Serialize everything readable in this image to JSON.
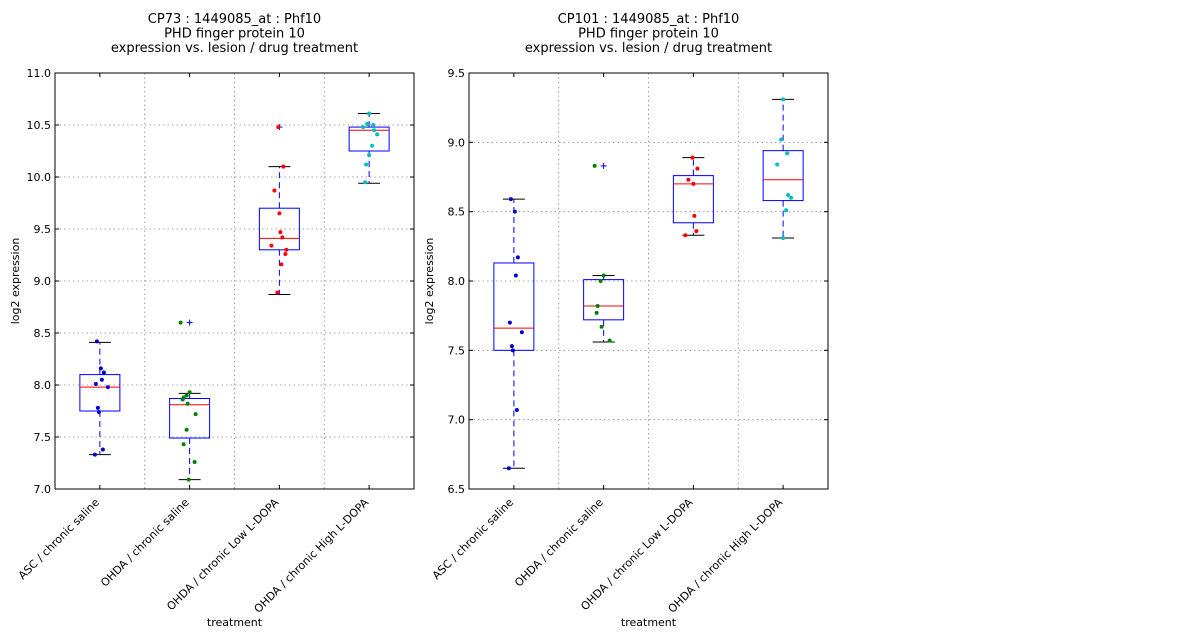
{
  "chart_data": [
    {
      "type": "box",
      "title_lines": [
        "CP73 : 1449085_at : Phf10",
        "PHD finger protein 10",
        "expression vs. lesion / drug treatment"
      ],
      "xlabel": "treatment",
      "ylabel": "log2 expression",
      "ylim": [
        7.0,
        11.0
      ],
      "yticks": [
        "7.0",
        "7.5",
        "8.0",
        "8.5",
        "9.0",
        "9.5",
        "10.0",
        "10.5",
        "11.0"
      ],
      "grid": true,
      "categories": [
        "ASC / chronic saline",
        "OHDA / chronic saline",
        "OHDA / chronic Low L-DOPA",
        "OHDA / chronic High L-DOPA"
      ],
      "colors": [
        "#0000cc",
        "#008000",
        "#ff0000",
        "#00bfbf"
      ],
      "boxes": [
        {
          "whisker_low": 7.33,
          "q1": 7.75,
          "median": 7.98,
          "q3": 8.1,
          "whisker_high": 8.41,
          "outliers": []
        },
        {
          "whisker_low": 7.09,
          "q1": 7.49,
          "median": 7.81,
          "q3": 7.87,
          "whisker_high": 7.92,
          "outliers": [
            8.6
          ]
        },
        {
          "whisker_low": 8.87,
          "q1": 9.3,
          "median": 9.41,
          "q3": 9.7,
          "whisker_high": 10.1,
          "outliers": [
            10.48
          ]
        },
        {
          "whisker_low": 9.94,
          "q1": 10.25,
          "median": 10.45,
          "q3": 10.48,
          "whisker_high": 10.61,
          "outliers": []
        }
      ],
      "points": [
        [
          8.42,
          8.16,
          8.12,
          8.05,
          8.01,
          7.98,
          7.78,
          7.74,
          7.38,
          7.33
        ],
        [
          8.6,
          7.93,
          7.9,
          7.88,
          7.86,
          7.82,
          7.72,
          7.57,
          7.43,
          7.26,
          7.09
        ],
        [
          10.48,
          10.1,
          9.87,
          9.65,
          9.47,
          9.42,
          9.34,
          9.3,
          9.26,
          9.16,
          8.89
        ],
        [
          10.61,
          10.51,
          10.5,
          10.48,
          10.45,
          10.41,
          10.3,
          10.21,
          10.12,
          9.95
        ]
      ]
    },
    {
      "type": "box",
      "title_lines": [
        "CP101 : 1449085_at : Phf10",
        "PHD finger protein 10",
        "expression vs. lesion / drug treatment"
      ],
      "xlabel": "treatment",
      "ylabel": "log2 expression",
      "ylim": [
        6.5,
        9.5
      ],
      "yticks": [
        "6.5",
        "7.0",
        "7.5",
        "8.0",
        "8.5",
        "9.0",
        "9.5"
      ],
      "grid": true,
      "categories": [
        "ASC / chronic saline",
        "OHDA / chronic saline",
        "OHDA / chronic Low L-DOPA",
        "OHDA / chronic High L-DOPA"
      ],
      "colors": [
        "#0000cc",
        "#008000",
        "#ff0000",
        "#00bfbf"
      ],
      "boxes": [
        {
          "whisker_low": 6.65,
          "q1": 7.5,
          "median": 7.66,
          "q3": 8.13,
          "whisker_high": 8.59,
          "outliers": []
        },
        {
          "whisker_low": 7.56,
          "q1": 7.72,
          "median": 7.82,
          "q3": 8.01,
          "whisker_high": 8.04,
          "outliers": [
            8.83
          ]
        },
        {
          "whisker_low": 8.33,
          "q1": 8.42,
          "median": 8.7,
          "q3": 8.76,
          "whisker_high": 8.89,
          "outliers": []
        },
        {
          "whisker_low": 8.31,
          "q1": 8.58,
          "median": 8.73,
          "q3": 8.94,
          "whisker_high": 9.31,
          "outliers": []
        }
      ],
      "points": [
        [
          8.59,
          8.5,
          8.17,
          8.04,
          7.7,
          7.63,
          7.53,
          7.5,
          7.07,
          6.65
        ],
        [
          8.83,
          8.04,
          8.0,
          7.82,
          7.77,
          7.67,
          7.57
        ],
        [
          8.89,
          8.81,
          8.73,
          8.7,
          8.47,
          8.36,
          8.33
        ],
        [
          9.31,
          9.02,
          8.92,
          8.84,
          8.62,
          8.6,
          8.51,
          8.31
        ]
      ]
    }
  ]
}
